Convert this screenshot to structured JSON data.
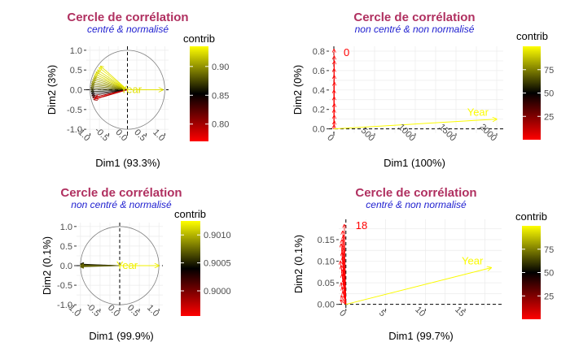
{
  "colors": {
    "title": "#b03060",
    "subtitle": "#2020d0",
    "panel_bg": "#ffffff",
    "grid": "#ebebeb",
    "gradient": [
      "#ff0000",
      "#000000",
      "#ffff00"
    ]
  },
  "chart_data": [
    {
      "type": "scatter",
      "title": "Cercle de corrélation",
      "subtitle": "centré & normalisé",
      "xlabel": "Dim1 (93.3%)",
      "ylabel": "Dim2 (3%)",
      "xlim": [
        -1.1,
        1.1
      ],
      "ylim": [
        -1.1,
        1.1
      ],
      "xticks": [
        "-1.0",
        "-0.5",
        "0.0",
        "0.5",
        "1.0"
      ],
      "yticks": [
        "-1.0",
        "-0.5",
        "0.0",
        "0.5",
        "1.0"
      ],
      "circle": true,
      "grid": true,
      "legend": {
        "title": "contrib",
        "position": "right",
        "min": 0.77,
        "max": 0.935,
        "ticks": [
          "0.80",
          "0.85",
          "0.90"
        ]
      },
      "arrow_label": "Year",
      "arrows": [
        {
          "x": -0.72,
          "y": 0.6,
          "c": 0.925
        },
        {
          "x": -0.76,
          "y": 0.56,
          "c": 0.93
        },
        {
          "x": -0.8,
          "y": 0.5,
          "c": 0.925
        },
        {
          "x": -0.84,
          "y": 0.45,
          "c": 0.92
        },
        {
          "x": -0.87,
          "y": 0.4,
          "c": 0.925
        },
        {
          "x": -0.89,
          "y": 0.35,
          "c": 0.915
        },
        {
          "x": -0.91,
          "y": 0.3,
          "c": 0.91
        },
        {
          "x": -0.93,
          "y": 0.25,
          "c": 0.905
        },
        {
          "x": -0.95,
          "y": 0.2,
          "c": 0.9
        },
        {
          "x": -0.96,
          "y": 0.15,
          "c": 0.895
        },
        {
          "x": -0.97,
          "y": 0.1,
          "c": 0.89
        },
        {
          "x": -0.98,
          "y": 0.05,
          "c": 0.88
        },
        {
          "x": -0.98,
          "y": 0.0,
          "c": 0.87
        },
        {
          "x": -0.97,
          "y": -0.05,
          "c": 0.86
        },
        {
          "x": -0.96,
          "y": -0.1,
          "c": 0.85
        },
        {
          "x": -0.95,
          "y": -0.15,
          "c": 0.84
        },
        {
          "x": -0.93,
          "y": -0.2,
          "c": 0.82
        },
        {
          "x": -0.9,
          "y": -0.25,
          "c": 0.8
        },
        {
          "x": -0.87,
          "y": -0.22,
          "c": 0.78
        },
        {
          "x": -0.85,
          "y": -0.18,
          "c": 0.79
        }
      ],
      "var_arrow": {
        "x": 0.95,
        "y": 0.0,
        "c": 0.925
      }
    },
    {
      "type": "scatter",
      "title": "Cercle de corrélation",
      "subtitle": "non centré & non normalisé",
      "xlabel": "Dim1 (100%)",
      "ylabel": "Dim2 (0%)",
      "xlim": [
        -60,
        2080
      ],
      "ylim": [
        -0.045,
        0.85
      ],
      "xticks": [
        "0",
        "500",
        "1000",
        "1500",
        "2000"
      ],
      "yticks": [
        "0.0",
        "0.2",
        "0.4",
        "0.6",
        "0.8"
      ],
      "circle": false,
      "grid": true,
      "legend": {
        "title": "contrib",
        "position": "right",
        "min": 0,
        "max": 100,
        "ticks": [
          "25",
          "50",
          "75"
        ]
      },
      "arrow_label": "Year",
      "corner_label": "0",
      "arrows": [
        {
          "x": 2,
          "y": 0.82,
          "c": 0.2
        },
        {
          "x": 4,
          "y": 0.75,
          "c": 0.5
        },
        {
          "x": 6,
          "y": 0.7,
          "c": 0.1
        },
        {
          "x": 3,
          "y": 0.62,
          "c": 0.3
        },
        {
          "x": 5,
          "y": 0.55,
          "c": 0.2
        },
        {
          "x": 7,
          "y": 0.48,
          "c": 0.4
        },
        {
          "x": 2,
          "y": 0.4,
          "c": 0.1
        },
        {
          "x": 4,
          "y": 0.33,
          "c": 0.3
        },
        {
          "x": 6,
          "y": 0.26,
          "c": 0.2
        },
        {
          "x": 3,
          "y": 0.2,
          "c": 0.5
        },
        {
          "x": 5,
          "y": 0.14,
          "c": 0.1
        },
        {
          "x": 7,
          "y": 0.08,
          "c": 0.3
        },
        {
          "x": 4,
          "y": 0.04,
          "c": 0.2
        }
      ],
      "var_arrow": {
        "x": 2000,
        "y": 0.1,
        "c": 99.5
      }
    },
    {
      "type": "scatter",
      "title": "Cercle de corrélation",
      "subtitle": "non centré & normalisé",
      "xlabel": "Dim1 (99.9%)",
      "ylabel": "Dim2 (0.1%)",
      "xlim": [
        -1.1,
        1.1
      ],
      "ylim": [
        -1.1,
        1.1
      ],
      "xticks": [
        "-1.0",
        "-0.5",
        "0.0",
        "0.5",
        "1.0"
      ],
      "yticks": [
        "-1.0",
        "-0.5",
        "0.0",
        "0.5",
        "1.0"
      ],
      "circle": true,
      "grid": true,
      "legend": {
        "title": "contrib",
        "position": "right",
        "min": 0.89955,
        "max": 0.90125,
        "ticks": [
          "0.9000",
          "0.9005",
          "0.9010"
        ]
      },
      "arrow_label": "Year",
      "arrows": [
        {
          "x": -0.999,
          "y": 0.04,
          "c": 0.9004
        },
        {
          "x": -0.999,
          "y": 0.03,
          "c": 0.90055
        },
        {
          "x": -0.999,
          "y": 0.02,
          "c": 0.9006
        },
        {
          "x": -0.999,
          "y": 0.01,
          "c": 0.90065
        },
        {
          "x": -0.999,
          "y": 0.0,
          "c": 0.9007
        },
        {
          "x": -0.999,
          "y": -0.01,
          "c": 0.90075
        },
        {
          "x": -0.999,
          "y": -0.02,
          "c": 0.9008
        },
        {
          "x": -0.999,
          "y": -0.03,
          "c": 0.9007
        }
      ],
      "var_arrow": {
        "x": 0.999,
        "y": 0.0,
        "c": 0.9012
      }
    },
    {
      "type": "scatter",
      "title": "Cercle de corrélation",
      "subtitle": "centré & non normalisé",
      "xlabel": "Dim1 (99.7%)",
      "ylabel": "Dim2 (0.1%)",
      "xlim": [
        -0.9,
        19.6
      ],
      "ylim": [
        -0.01,
        0.197
      ],
      "xticks": [
        "0",
        "5",
        "10",
        "15"
      ],
      "yticks": [
        "0.00",
        "0.05",
        "0.10",
        "0.15"
      ],
      "circle": false,
      "grid": true,
      "legend": {
        "title": "contrib",
        "position": "right",
        "min": 0,
        "max": 100,
        "ticks": [
          "25",
          "50",
          "75"
        ]
      },
      "arrow_label": "Year",
      "corner_label": "18",
      "arrows": [
        {
          "x": -0.2,
          "y": 0.185,
          "c": 0.3
        },
        {
          "x": -0.4,
          "y": 0.17,
          "c": 0.1
        },
        {
          "x": -0.3,
          "y": 0.16,
          "c": 0.2
        },
        {
          "x": -0.5,
          "y": 0.15,
          "c": 0.4
        },
        {
          "x": -0.6,
          "y": 0.14,
          "c": 0.1
        },
        {
          "x": -0.3,
          "y": 0.13,
          "c": 0.3
        },
        {
          "x": -0.5,
          "y": 0.12,
          "c": 0.2
        },
        {
          "x": -0.4,
          "y": 0.11,
          "c": 0.5
        },
        {
          "x": -0.7,
          "y": 0.1,
          "c": 0.1
        },
        {
          "x": -0.6,
          "y": 0.09,
          "c": 0.3
        },
        {
          "x": -0.4,
          "y": 0.08,
          "c": 0.2
        },
        {
          "x": -0.5,
          "y": 0.07,
          "c": 0.1
        },
        {
          "x": -0.3,
          "y": 0.06,
          "c": 0.4
        },
        {
          "x": -0.6,
          "y": 0.05,
          "c": 0.2
        },
        {
          "x": -0.5,
          "y": 0.04,
          "c": 0.3
        },
        {
          "x": -0.4,
          "y": 0.03,
          "c": 0.1
        },
        {
          "x": -0.6,
          "y": 0.02,
          "c": 0.2
        },
        {
          "x": -0.7,
          "y": 0.01,
          "c": 0.3
        }
      ],
      "var_arrow": {
        "x": 18.3,
        "y": 0.085,
        "c": 99.0
      }
    }
  ]
}
